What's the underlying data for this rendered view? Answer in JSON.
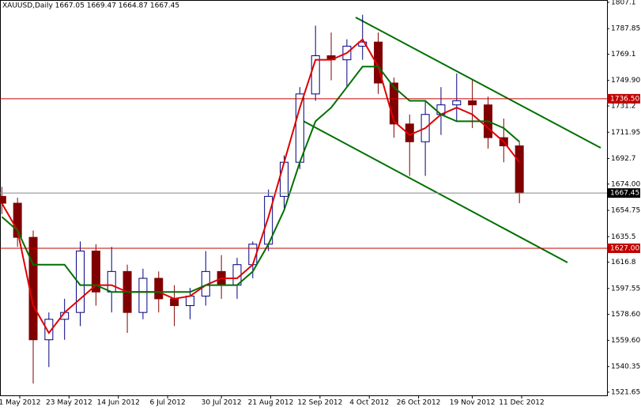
{
  "chart_data": {
    "type": "candlestick",
    "title": "XAUUSD,Daily  1667.05 1669.47 1664.87 1667.45",
    "x": [
      "2012-04-23",
      "2012-04-30",
      "2012-05-07",
      "2012-05-14",
      "2012-05-21",
      "2012-05-28",
      "2012-06-04",
      "2012-06-11",
      "2012-06-18",
      "2012-06-25",
      "2012-07-02",
      "2012-07-09",
      "2012-07-16",
      "2012-07-23",
      "2012-07-30",
      "2012-08-06",
      "2012-08-13",
      "2012-08-20",
      "2012-08-27",
      "2012-09-03",
      "2012-09-10",
      "2012-09-17",
      "2012-09-24",
      "2012-10-01",
      "2012-10-08",
      "2012-10-15",
      "2012-10-22",
      "2012-10-29",
      "2012-11-05",
      "2012-11-12",
      "2012-11-19",
      "2012-11-26",
      "2012-12-03",
      "2012-12-10"
    ],
    "open": [
      1665,
      1660,
      1635,
      1560,
      1575,
      1580,
      1625,
      1595,
      1610,
      1580,
      1605,
      1590,
      1585,
      1592,
      1610,
      1600,
      1615,
      1630,
      1665,
      1690,
      1740,
      1768,
      1765,
      1775,
      1778,
      1748,
      1718,
      1705,
      1725,
      1732,
      1735,
      1732,
      1708,
      1702
    ],
    "high": [
      1672,
      1664,
      1640,
      1580,
      1590,
      1632,
      1630,
      1628,
      1615,
      1612,
      1610,
      1600,
      1598,
      1625,
      1622,
      1620,
      1632,
      1670,
      1695,
      1745,
      1790,
      1785,
      1780,
      1798,
      1785,
      1752,
      1725,
      1735,
      1745,
      1755,
      1750,
      1738,
      1722,
      1705
    ],
    "low": [
      1652,
      1628,
      1528,
      1540,
      1560,
      1570,
      1585,
      1580,
      1565,
      1575,
      1580,
      1570,
      1575,
      1585,
      1590,
      1590,
      1605,
      1625,
      1655,
      1685,
      1735,
      1750,
      1745,
      1765,
      1740,
      1708,
      1680,
      1680,
      1710,
      1720,
      1715,
      1700,
      1690,
      1660
    ],
    "close": [
      1660,
      1635,
      1560,
      1575,
      1580,
      1625,
      1595,
      1610,
      1580,
      1605,
      1590,
      1585,
      1592,
      1610,
      1600,
      1615,
      1630,
      1665,
      1690,
      1740,
      1768,
      1765,
      1775,
      1778,
      1748,
      1718,
      1705,
      1725,
      1732,
      1735,
      1732,
      1708,
      1702,
      1667.45
    ],
    "up_color": "#000080",
    "down_color": "#800000",
    "series": [
      {
        "color": "#e00000",
        "values": [
          1660,
          1640,
          1585,
          1565,
          1580,
          1590,
          1600,
          1600,
          1595,
          1595,
          1595,
          1590,
          1592,
          1600,
          1605,
          1605,
          1615,
          1650,
          1690,
          1730,
          1765,
          1765,
          1770,
          1780,
          1760,
          1720,
          1710,
          1715,
          1725,
          1730,
          1725,
          1715,
          1705,
          1690
        ]
      },
      {
        "color": "#007000",
        "values": [
          1650,
          1640,
          1615,
          1615,
          1615,
          1600,
          1600,
          1595,
          1595,
          1595,
          1595,
          1595,
          1595,
          1600,
          1600,
          1600,
          1610,
          1630,
          1655,
          1690,
          1720,
          1730,
          1745,
          1760,
          1760,
          1745,
          1735,
          1735,
          1725,
          1720,
          1720,
          1720,
          1715,
          1705
        ]
      }
    ],
    "levels": [
      {
        "value": 1736.5,
        "label": "1736.50",
        "color": "#c00000"
      },
      {
        "value": 1627,
        "label": "1627.00",
        "color": "#c00000"
      },
      {
        "value": 1667.45,
        "label": "1667.45",
        "color": "#000000"
      }
    ],
    "ylim": [
      1519.3,
      1808.8
    ],
    "yticks": [
      1807.1,
      1787.85,
      1769.1,
      {
        "value": 1749.9,
        "label": "1749.90"
      },
      1731.2,
      1711.95,
      1692.7,
      {
        "value": 1674,
        "label": "1674.00"
      },
      1654.75,
      1635.5,
      1616.8,
      1597.55,
      {
        "value": 1578.6,
        "label": "1578.60"
      },
      {
        "value": 1559.6,
        "label": "1559.60"
      },
      1540.35,
      1521.65
    ],
    "xticks": [
      {
        "value": "2012-05-01",
        "label": "1 May 2012"
      },
      {
        "value": "2012-05-23",
        "label": "23 May 2012"
      },
      {
        "value": "2012-06-14",
        "label": "14 Jun 2012"
      },
      {
        "value": "2012-07-06",
        "label": "6 Jul 2012"
      },
      {
        "value": "2012-07-30",
        "label": "30 Jul 2012"
      },
      {
        "value": "2012-08-21",
        "label": "21 Aug 2012"
      },
      {
        "value": "2012-09-12",
        "label": "12 Sep 2012"
      },
      {
        "value": "2012-10-04",
        "label": "4 Oct 2012"
      },
      {
        "value": "2012-10-26",
        "label": "26 Oct 2012"
      },
      {
        "value": "2012-11-19",
        "label": "19 Nov 2012"
      },
      {
        "value": "2012-12-11",
        "label": "11 Dec 2012"
      }
    ]
  }
}
